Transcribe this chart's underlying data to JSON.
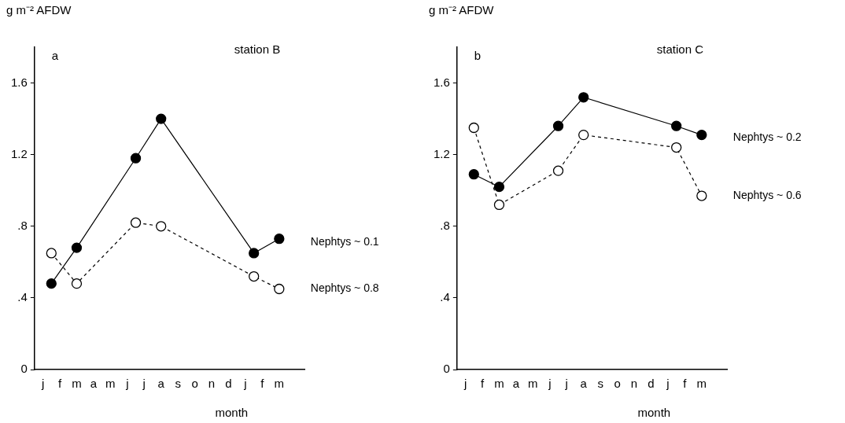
{
  "chart_data": [
    {
      "type": "line",
      "title": "station B",
      "xlabel": "month",
      "ylabel": "g m⁻² AFDW",
      "annotations": [
        "a"
      ],
      "categories": [
        null,
        "j",
        null,
        "f",
        null,
        "m",
        null,
        "a",
        null,
        "m",
        null,
        "j",
        null,
        "j",
        null,
        "a",
        null,
        "s",
        null,
        "o",
        null,
        "n",
        null,
        "d",
        null,
        "j",
        null,
        "f",
        null,
        "m",
        null,
        null,
        null
      ],
      "ylim": [
        0,
        1.8
      ],
      "yticks": [
        0,
        {
          "value": 0.4,
          "label": ".4"
        },
        {
          "value": 0.8,
          "label": ".8"
        },
        {
          "value": 1.2,
          "label": "1.2"
        },
        {
          "value": 1.6,
          "label": "1.6"
        }
      ],
      "grid": false,
      "legend": false,
      "marker": "circle",
      "series": [
        {
          "name": "Nephtys ~ 0.1",
          "color": "#000000",
          "line_style": "solid",
          "values": [
            null,
            null,
            0.48,
            null,
            null,
            0.68,
            null,
            null,
            null,
            null,
            null,
            null,
            1.18,
            null,
            null,
            1.4,
            null,
            null,
            null,
            null,
            null,
            null,
            null,
            null,
            null,
            null,
            0.65,
            null,
            null,
            0.73,
            null,
            null,
            null
          ]
        },
        {
          "name": "Nephtys ~ 0.8",
          "color": "#000000",
          "line_style": "dashed",
          "values": [
            null,
            null,
            0.65,
            null,
            null,
            0.48,
            null,
            null,
            null,
            null,
            null,
            null,
            0.82,
            null,
            null,
            0.8,
            null,
            null,
            null,
            null,
            null,
            null,
            null,
            null,
            null,
            null,
            0.52,
            null,
            null,
            0.45,
            null,
            null,
            null
          ]
        }
      ]
    },
    {
      "type": "line",
      "title": "station C",
      "xlabel": "month",
      "ylabel": "g m⁻² AFDW",
      "annotations": [
        "b"
      ],
      "categories": [
        null,
        "j",
        null,
        "f",
        null,
        "m",
        null,
        "a",
        null,
        "m",
        null,
        "j",
        null,
        "j",
        null,
        "a",
        null,
        "s",
        null,
        "o",
        null,
        "n",
        null,
        "d",
        null,
        "j",
        null,
        "f",
        null,
        "m",
        null,
        null,
        null
      ],
      "ylim": [
        0,
        1.8
      ],
      "yticks": [
        0,
        {
          "value": 0.4,
          "label": ".4"
        },
        {
          "value": 0.8,
          "label": ".8"
        },
        {
          "value": 1.2,
          "label": "1.2"
        },
        {
          "value": 1.6,
          "label": "1.6"
        }
      ],
      "grid": false,
      "legend": false,
      "marker": "circle",
      "series": [
        {
          "name": "Nephtys ~ 0.2",
          "color": "#000000",
          "line_style": "solid",
          "values": [
            null,
            null,
            1.09,
            null,
            null,
            1.02,
            null,
            null,
            null,
            null,
            null,
            null,
            1.36,
            null,
            null,
            1.52,
            null,
            null,
            null,
            null,
            null,
            null,
            null,
            null,
            null,
            null,
            1.36,
            null,
            null,
            1.31,
            null,
            null,
            null
          ]
        },
        {
          "name": "Nephtys ~ 0.6",
          "color": "#000000",
          "line_style": "dashed",
          "values": [
            null,
            null,
            1.35,
            null,
            null,
            0.92,
            null,
            null,
            null,
            null,
            null,
            null,
            1.11,
            null,
            null,
            1.31,
            null,
            null,
            null,
            null,
            null,
            null,
            null,
            null,
            null,
            null,
            1.24,
            null,
            null,
            0.97,
            null,
            null,
            null
          ]
        }
      ]
    }
  ]
}
